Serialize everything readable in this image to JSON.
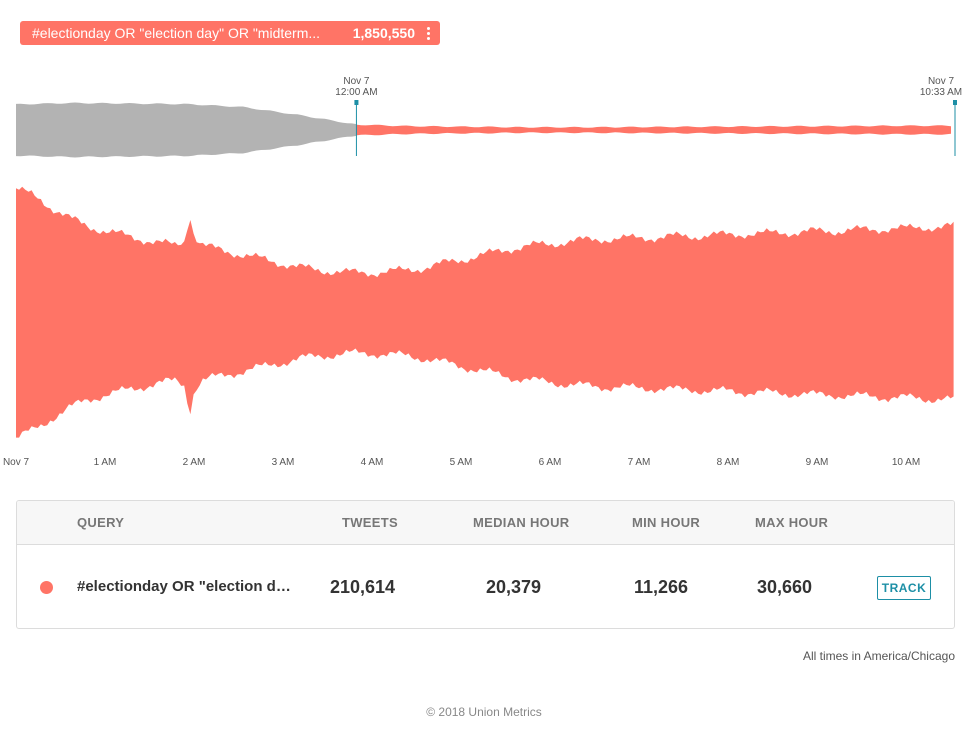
{
  "query_pill": {
    "label": "#electionday OR \"election day\" OR \"midterm...",
    "count": "1,850,550"
  },
  "chart_data": {
    "type": "area",
    "style": "streamgraph",
    "color": "#ff7466",
    "x_tick_labels": [
      "Nov 7",
      "1 AM",
      "2 AM",
      "3 AM",
      "4 AM",
      "5 AM",
      "6 AM",
      "7 AM",
      "8 AM",
      "9 AM",
      "10 AM"
    ],
    "range_start_label": [
      "Nov 7",
      "12:00 AM"
    ],
    "range_end_label": [
      "Nov 7",
      "10:33 AM"
    ],
    "overview_color_outside": "#b3b3b3",
    "selection_marker_color": "#1d8fa6",
    "x_hours": [
      0,
      0.1,
      0.2,
      0.3,
      0.4,
      0.5,
      0.6,
      0.7,
      0.8,
      0.9,
      1,
      1.2,
      1.4,
      1.6,
      1.8,
      1.9,
      1.95,
      2.0,
      2.05,
      2.1,
      2.2,
      2.4,
      2.6,
      2.8,
      3,
      3.2,
      3.4,
      3.6,
      3.8,
      4,
      4.2,
      4.4,
      4.6,
      4.8,
      5,
      5.2,
      5.4,
      5.6,
      5.8,
      6,
      6.2,
      6.4,
      6.6,
      6.8,
      7,
      7.2,
      7.4,
      7.6,
      7.8,
      8,
      8.2,
      8.4,
      8.6,
      8.8,
      9,
      9.2,
      9.4,
      9.6,
      9.8,
      10,
      10.2,
      10.4,
      10.55
    ],
    "relative_volume": [
      0.96,
      0.93,
      0.9,
      0.86,
      0.81,
      0.77,
      0.73,
      0.7,
      0.67,
      0.65,
      0.63,
      0.6,
      0.57,
      0.54,
      0.52,
      0.56,
      0.78,
      0.6,
      0.55,
      0.52,
      0.5,
      0.47,
      0.44,
      0.41,
      0.38,
      0.35,
      0.33,
      0.32,
      0.31,
      0.31,
      0.32,
      0.33,
      0.35,
      0.38,
      0.41,
      0.44,
      0.47,
      0.5,
      0.52,
      0.53,
      0.55,
      0.56,
      0.57,
      0.57,
      0.58,
      0.58,
      0.59,
      0.59,
      0.6,
      0.6,
      0.61,
      0.61,
      0.62,
      0.62,
      0.63,
      0.63,
      0.64,
      0.64,
      0.65,
      0.65,
      0.66,
      0.66,
      0.67
    ],
    "overview_x_hours": [
      -6,
      -5,
      -4,
      -3,
      -2,
      -1,
      0,
      1,
      2,
      3,
      4,
      5,
      6,
      7,
      8,
      9,
      10,
      10.55
    ],
    "overview_relative_volume": [
      0.95,
      1.0,
      0.98,
      0.96,
      0.85,
      0.55,
      0.2,
      0.14,
      0.12,
      0.1,
      0.1,
      0.11,
      0.12,
      0.13,
      0.14,
      0.15,
      0.16,
      0.16
    ]
  },
  "table": {
    "headers": {
      "query": "QUERY",
      "tweets": "TWEETS",
      "median": "MEDIAN HOUR",
      "min": "MIN HOUR",
      "max": "MAX HOUR"
    },
    "rows": [
      {
        "color": "#ff7466",
        "query": "#electionday OR \"election day\" OR \"midterms\"",
        "tweets": "210,614",
        "median_hour": "20,379",
        "min_hour": "11,266",
        "max_hour": "30,660",
        "action": "TRACK"
      }
    ]
  },
  "timezone_note": "All times in America/Chicago",
  "footer": "© 2018 Union Metrics"
}
